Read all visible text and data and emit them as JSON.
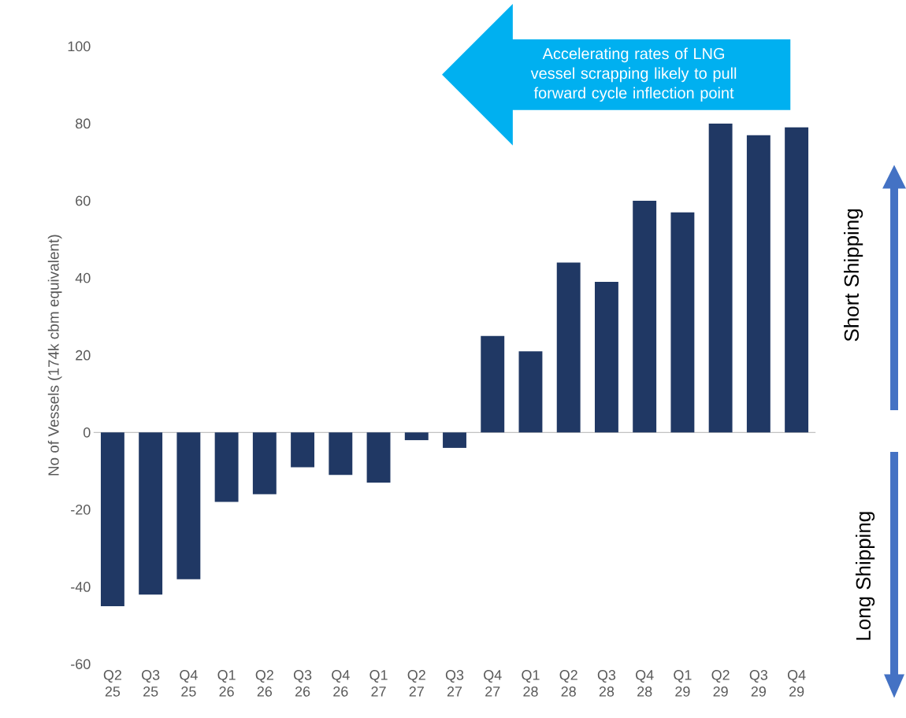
{
  "chart_data": {
    "type": "bar",
    "categories": [
      "Q2 25",
      "Q3 25",
      "Q4 25",
      "Q1 26",
      "Q2 26",
      "Q3 26",
      "Q4 26",
      "Q1 27",
      "Q2 27",
      "Q3 27",
      "Q4 27",
      "Q1 28",
      "Q2 28",
      "Q3 28",
      "Q4 28",
      "Q1 29",
      "Q2 29",
      "Q3 29",
      "Q4 29"
    ],
    "values": [
      -45,
      -42,
      -38,
      -18,
      -16,
      -9,
      -11,
      -13,
      -2,
      -4,
      25,
      21,
      44,
      39,
      60,
      57,
      80,
      77,
      79
    ],
    "color": "#203864",
    "ylabel": "No of Vessels (174k cbm equivalent)",
    "ylim": [
      -60,
      100
    ],
    "yticks": [
      -60,
      -40,
      -20,
      0,
      20,
      40,
      60,
      80,
      100
    ],
    "annotations": [
      "Accelerating rates of LNG vessel scrapping likely to pull forward cycle inflection point",
      "Short Shipping",
      "Long Shipping"
    ]
  }
}
